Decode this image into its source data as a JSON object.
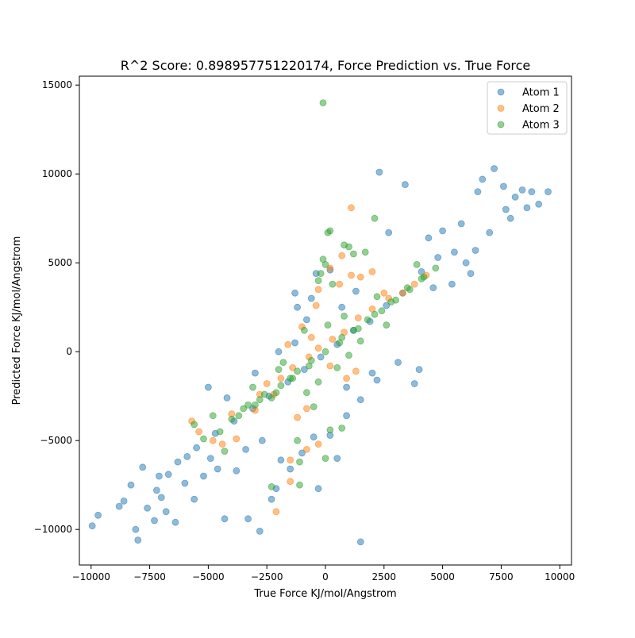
{
  "chart_data": {
    "type": "scatter",
    "title": "R^2 Score: 0.898957751220174, Force Prediction vs. True Force",
    "xlabel": "True Force KJ/mol/Angstrom",
    "ylabel": "Predicted Force KJ/mol/Angstrom",
    "xlim": [
      -10500,
      10500
    ],
    "ylim": [
      -12000,
      15500
    ],
    "x_ticks": [
      -10000,
      -7500,
      -5000,
      -2500,
      0,
      2500,
      5000,
      7500,
      10000
    ],
    "x_tick_labels": [
      "−10000",
      "−7500",
      "−5000",
      "−2500",
      "0",
      "2500",
      "5000",
      "7500",
      "10000"
    ],
    "y_ticks": [
      -10000,
      -5000,
      0,
      5000,
      10000,
      15000
    ],
    "y_tick_labels": [
      "−10000",
      "−5000",
      "0",
      "5000",
      "10000",
      "15000"
    ],
    "grid": false,
    "legend_position": "top-right",
    "series": [
      {
        "name": "Atom 1",
        "color": "#1f77b4",
        "points": [
          [
            -9950,
            -9800
          ],
          [
            -9700,
            -9200
          ],
          [
            -8600,
            -8400
          ],
          [
            -8300,
            -7500
          ],
          [
            -8000,
            -10600
          ],
          [
            -8100,
            -10000
          ],
          [
            -7800,
            -6500
          ],
          [
            -7600,
            -8800
          ],
          [
            -7300,
            -9500
          ],
          [
            -7000,
            -8200
          ],
          [
            -7200,
            -7800
          ],
          [
            -6800,
            -9000
          ],
          [
            -6400,
            -9600
          ],
          [
            -6000,
            -7400
          ],
          [
            -5600,
            -8300
          ],
          [
            -5200,
            -7000
          ],
          [
            -4900,
            -6000
          ],
          [
            -4600,
            -6600
          ],
          [
            -4300,
            -9400
          ],
          [
            -3800,
            -6700
          ],
          [
            -3300,
            -9400
          ],
          [
            -2800,
            -10100
          ],
          [
            -2300,
            -8300
          ],
          [
            -2100,
            -7700
          ],
          [
            -3400,
            -5500
          ],
          [
            -2700,
            -5000
          ],
          [
            -1900,
            -6100
          ],
          [
            -1500,
            -6600
          ],
          [
            -1000,
            -5700
          ],
          [
            -500,
            -4800
          ],
          [
            -300,
            -7700
          ],
          [
            200,
            -4700
          ],
          [
            500,
            -6000
          ],
          [
            900,
            -3600
          ],
          [
            1500,
            -10700
          ],
          [
            -5000,
            -2000
          ],
          [
            -4200,
            -2600
          ],
          [
            -3000,
            -1200
          ],
          [
            -2000,
            0
          ],
          [
            -1300,
            500
          ],
          [
            -800,
            1800
          ],
          [
            -1200,
            2500
          ],
          [
            -600,
            3000
          ],
          [
            -1300,
            3300
          ],
          [
            -400,
            4400
          ],
          [
            200,
            4600
          ],
          [
            700,
            2500
          ],
          [
            1300,
            3400
          ],
          [
            900,
            -2000
          ],
          [
            1500,
            -2700
          ],
          [
            2000,
            -1200
          ],
          [
            2200,
            -1600
          ],
          [
            3100,
            -600
          ],
          [
            3800,
            -1800
          ],
          [
            4000,
            -1000
          ],
          [
            2300,
            10100
          ],
          [
            3400,
            9400
          ],
          [
            2700,
            6700
          ],
          [
            4400,
            6400
          ],
          [
            5000,
            6800
          ],
          [
            5400,
            3800
          ],
          [
            6200,
            4400
          ],
          [
            6500,
            9000
          ],
          [
            6700,
            9700
          ],
          [
            7200,
            10300
          ],
          [
            7600,
            9300
          ],
          [
            7700,
            8000
          ],
          [
            8100,
            8700
          ],
          [
            8400,
            9100
          ],
          [
            8800,
            9000
          ],
          [
            9100,
            8300
          ],
          [
            9500,
            9000
          ],
          [
            7000,
            6700
          ],
          [
            6000,
            5000
          ],
          [
            5500,
            5600
          ],
          [
            4800,
            5300
          ],
          [
            4100,
            4500
          ],
          [
            3300,
            3300
          ],
          [
            2600,
            2600
          ],
          [
            1900,
            1700
          ],
          [
            1200,
            1200
          ],
          [
            500,
            400
          ],
          [
            -200,
            -300
          ],
          [
            -900,
            -1000
          ],
          [
            -1600,
            -1700
          ],
          [
            -2400,
            -2500
          ],
          [
            -3100,
            -3200
          ],
          [
            -3900,
            -3900
          ],
          [
            -4700,
            -4600
          ],
          [
            -5500,
            -5400
          ],
          [
            -6300,
            -6200
          ],
          [
            -7100,
            -7000
          ],
          [
            7900,
            7500
          ],
          [
            8600,
            8100
          ],
          [
            5800,
            7200
          ],
          [
            6400,
            5700
          ],
          [
            4600,
            3600
          ],
          [
            -8800,
            -8700
          ],
          [
            -6700,
            -6900
          ],
          [
            -5900,
            -5900
          ]
        ]
      },
      {
        "name": "Atom 2",
        "color": "#ff7f0e",
        "points": [
          [
            1100,
            8100
          ],
          [
            -5700,
            -3900
          ],
          [
            -5400,
            -4500
          ],
          [
            -4800,
            -5000
          ],
          [
            -4400,
            -5200
          ],
          [
            -3800,
            -4900
          ],
          [
            -2100,
            -9000
          ],
          [
            -1500,
            -7300
          ],
          [
            -1500,
            -6100
          ],
          [
            -800,
            -5500
          ],
          [
            -300,
            -5200
          ],
          [
            -1200,
            -3700
          ],
          [
            -800,
            -3200
          ],
          [
            -2200,
            -2400
          ],
          [
            -2500,
            -1800
          ],
          [
            -1000,
            1400
          ],
          [
            -400,
            2600
          ],
          [
            -300,
            3500
          ],
          [
            200,
            4700
          ],
          [
            600,
            3800
          ],
          [
            1100,
            4300
          ],
          [
            700,
            5400
          ],
          [
            1500,
            4200
          ],
          [
            2000,
            4500
          ],
          [
            2500,
            3300
          ],
          [
            -4000,
            -3500
          ],
          [
            -3000,
            -3300
          ],
          [
            -2800,
            -2400
          ],
          [
            -1900,
            -1500
          ],
          [
            -1400,
            -900
          ],
          [
            -700,
            -300
          ],
          [
            -300,
            200
          ],
          [
            300,
            700
          ],
          [
            800,
            1100
          ],
          [
            1400,
            1900
          ],
          [
            2000,
            2400
          ],
          [
            2700,
            3000
          ],
          [
            3300,
            3300
          ],
          [
            3800,
            3800
          ],
          [
            4300,
            4300
          ],
          [
            -600,
            800
          ],
          [
            200,
            -800
          ],
          [
            900,
            -1500
          ],
          [
            1300,
            -1100
          ],
          [
            -1600,
            400
          ]
        ]
      },
      {
        "name": "Atom 3",
        "color": "#2ca02c",
        "points": [
          [
            -100,
            14000
          ],
          [
            2100,
            7500
          ],
          [
            100,
            6700
          ],
          [
            200,
            6800
          ],
          [
            800,
            6000
          ],
          [
            1000,
            5900
          ],
          [
            1200,
            5500
          ],
          [
            1700,
            5600
          ],
          [
            -100,
            5200
          ],
          [
            0,
            4900
          ],
          [
            -200,
            4400
          ],
          [
            300,
            3800
          ],
          [
            -300,
            4000
          ],
          [
            -2300,
            -7600
          ],
          [
            -1100,
            -7500
          ],
          [
            -1100,
            -6200
          ],
          [
            0,
            -6000
          ],
          [
            200,
            -4400
          ],
          [
            700,
            -4300
          ],
          [
            -1200,
            -5000
          ],
          [
            -500,
            -3100
          ],
          [
            -800,
            -2300
          ],
          [
            -1500,
            -1500
          ],
          [
            -2300,
            -2600
          ],
          [
            -3000,
            -3000
          ],
          [
            -3700,
            -3600
          ],
          [
            -4500,
            -4500
          ],
          [
            -5200,
            -4900
          ],
          [
            -5600,
            -4100
          ],
          [
            -4800,
            -3600
          ],
          [
            -4000,
            -3800
          ],
          [
            -3300,
            -3000
          ],
          [
            -2600,
            -2400
          ],
          [
            -1900,
            -1900
          ],
          [
            -1200,
            -1100
          ],
          [
            -600,
            -500
          ],
          [
            0,
            0
          ],
          [
            600,
            500
          ],
          [
            1200,
            1200
          ],
          [
            1800,
            1800
          ],
          [
            2400,
            2300
          ],
          [
            3000,
            2900
          ],
          [
            3600,
            3500
          ],
          [
            4200,
            4200
          ],
          [
            4700,
            4700
          ],
          [
            -3500,
            -3200
          ],
          [
            -2800,
            -2700
          ],
          [
            -2100,
            -2300
          ],
          [
            -1400,
            -1500
          ],
          [
            -700,
            -800
          ],
          [
            700,
            800
          ],
          [
            1400,
            1300
          ],
          [
            2100,
            2100
          ],
          [
            2800,
            2800
          ],
          [
            3500,
            3600
          ],
          [
            4100,
            4100
          ],
          [
            800,
            2000
          ],
          [
            -900,
            1200
          ],
          [
            500,
            -900
          ],
          [
            1500,
            600
          ],
          [
            -1800,
            -600
          ],
          [
            2600,
            1500
          ],
          [
            3900,
            4900
          ],
          [
            -4300,
            -5600
          ],
          [
            -2000,
            -1000
          ],
          [
            100,
            1500
          ],
          [
            -300,
            -1700
          ],
          [
            1000,
            -200
          ],
          [
            2200,
            3100
          ],
          [
            -3100,
            -2000
          ]
        ]
      }
    ]
  }
}
